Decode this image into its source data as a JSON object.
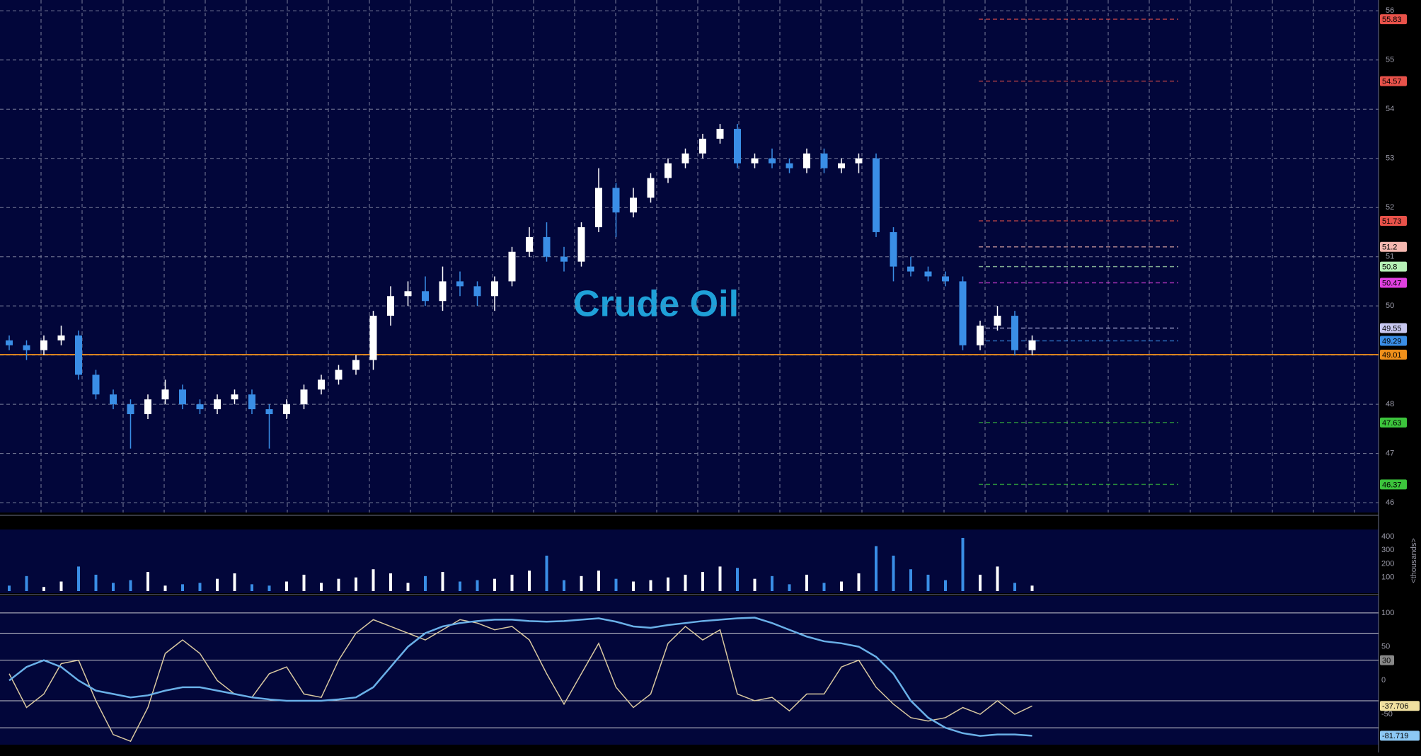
{
  "chart_data": [
    {
      "type": "candlestick",
      "title": "Crude Oil",
      "open": [
        49.3,
        49.2,
        49.1,
        49.3,
        49.4,
        48.6,
        48.2,
        48.0,
        47.8,
        48.1,
        48.3,
        48.0,
        47.9,
        48.1,
        48.2,
        47.9,
        47.8,
        48.0,
        48.3,
        48.5,
        48.7,
        48.9,
        49.8,
        50.2,
        50.3,
        50.1,
        50.5,
        50.4,
        50.2,
        50.5,
        51.1,
        51.4,
        51.0,
        50.9,
        51.6,
        52.4,
        51.9,
        52.2,
        52.6,
        52.9,
        53.1,
        53.4,
        53.6,
        52.9,
        53.0,
        52.9,
        52.8,
        53.1,
        52.8,
        52.9,
        53.0,
        51.5,
        50.8,
        50.7,
        50.6,
        50.5,
        49.2,
        49.6,
        49.8,
        49.1
      ],
      "high": [
        49.4,
        49.3,
        49.4,
        49.6,
        49.5,
        48.7,
        48.3,
        48.1,
        48.2,
        48.5,
        48.4,
        48.1,
        48.2,
        48.3,
        48.3,
        48.0,
        48.1,
        48.4,
        48.6,
        48.8,
        49.0,
        49.9,
        50.4,
        50.5,
        50.6,
        50.8,
        50.7,
        50.5,
        50.6,
        51.2,
        51.6,
        51.7,
        51.2,
        51.7,
        52.8,
        52.5,
        52.4,
        52.7,
        53.0,
        53.2,
        53.5,
        53.7,
        53.7,
        53.1,
        53.2,
        53.0,
        53.2,
        53.2,
        53.0,
        53.1,
        53.1,
        51.6,
        51.0,
        50.8,
        50.7,
        50.6,
        49.7,
        50.0,
        49.9,
        49.4
      ],
      "low": [
        49.1,
        48.9,
        49.0,
        49.2,
        48.5,
        48.1,
        47.9,
        47.1,
        47.7,
        48.0,
        47.9,
        47.8,
        47.8,
        48.0,
        47.8,
        47.1,
        47.7,
        47.9,
        48.2,
        48.4,
        48.6,
        48.7,
        49.6,
        50.0,
        50.0,
        49.9,
        50.2,
        50.0,
        49.9,
        50.4,
        51.0,
        50.9,
        50.7,
        50.8,
        51.5,
        51.4,
        51.8,
        52.1,
        52.5,
        52.8,
        53.0,
        53.3,
        52.8,
        52.8,
        52.8,
        52.7,
        52.7,
        52.7,
        52.7,
        52.7,
        51.4,
        50.5,
        50.6,
        50.5,
        50.4,
        49.1,
        49.1,
        49.5,
        49.0,
        49.0
      ],
      "close": [
        49.2,
        49.1,
        49.3,
        49.4,
        48.6,
        48.2,
        48.0,
        47.8,
        48.1,
        48.3,
        48.0,
        47.9,
        48.1,
        48.2,
        47.9,
        47.8,
        48.0,
        48.3,
        48.5,
        48.7,
        48.9,
        49.8,
        50.2,
        50.3,
        50.1,
        50.5,
        50.4,
        50.2,
        50.5,
        51.1,
        51.4,
        51.0,
        50.9,
        51.6,
        52.4,
        51.9,
        52.2,
        52.6,
        52.9,
        53.1,
        53.4,
        53.6,
        52.9,
        53.0,
        52.9,
        52.8,
        53.1,
        52.8,
        52.9,
        53.0,
        51.5,
        50.8,
        50.7,
        50.6,
        50.5,
        49.2,
        49.6,
        49.8,
        49.1,
        49.3
      ],
      "colors": {
        "up": "#ffffff",
        "down": "#3a8ee6"
      },
      "ylim": [
        45.8,
        56.22
      ],
      "yticks": [
        46,
        47,
        48,
        49,
        50,
        51,
        52,
        53,
        54,
        55,
        56
      ],
      "grid": true,
      "levels": [
        {
          "value": 55.83,
          "color": "#e8524a"
        },
        {
          "value": 54.57,
          "color": "#e8524a"
        },
        {
          "value": 51.73,
          "color": "#e8524a"
        },
        {
          "value": 51.2,
          "color": "#f4b8b0"
        },
        {
          "value": 50.8,
          "color": "#b6f0b6"
        },
        {
          "value": 50.47,
          "color": "#e040e0"
        },
        {
          "value": 49.55,
          "color": "#c8c8f0"
        },
        {
          "value": 49.29,
          "color": "#3a8ee6"
        },
        {
          "value": 49.01,
          "color": "#f0901a",
          "span": "full"
        },
        {
          "value": 47.63,
          "color": "#3cc43c"
        },
        {
          "value": 46.37,
          "color": "#3cc43c"
        }
      ]
    },
    {
      "type": "bar",
      "y_label": "<thousands>",
      "values": [
        40,
        110,
        30,
        70,
        180,
        120,
        60,
        80,
        140,
        40,
        50,
        60,
        90,
        130,
        50,
        40,
        70,
        120,
        60,
        90,
        100,
        160,
        130,
        60,
        110,
        140,
        70,
        80,
        90,
        120,
        150,
        260,
        80,
        110,
        150,
        90,
        70,
        80,
        100,
        120,
        140,
        180,
        170,
        90,
        110,
        50,
        120,
        60,
        70,
        130,
        330,
        260,
        160,
        120,
        80,
        390,
        120,
        180,
        60,
        40
      ],
      "ylim": [
        0,
        452
      ],
      "yticks": [
        100,
        200,
        300,
        400
      ]
    },
    {
      "type": "line",
      "series": [
        {
          "color": "#d8c8a0",
          "values": [
            10,
            -40,
            -20,
            25,
            30,
            -30,
            -80,
            -90,
            -40,
            40,
            60,
            40,
            0,
            -20,
            -25,
            10,
            20,
            -20,
            -25,
            30,
            70,
            90,
            80,
            70,
            60,
            75,
            90,
            85,
            75,
            80,
            60,
            10,
            -35,
            10,
            55,
            -10,
            -40,
            -20,
            55,
            80,
            60,
            75,
            -20,
            -30,
            -25,
            -45,
            -20,
            -20,
            20,
            30,
            -10,
            -35,
            -55,
            -60,
            -55,
            -40,
            -50,
            -30,
            -50,
            -37.706
          ],
          "tag_color": "#f0e0a0"
        },
        {
          "color": "#6ab0e8",
          "values": [
            0,
            20,
            30,
            20,
            0,
            -15,
            -20,
            -25,
            -22,
            -15,
            -10,
            -10,
            -15,
            -20,
            -25,
            -28,
            -30,
            -30,
            -30,
            -28,
            -25,
            -10,
            20,
            50,
            70,
            80,
            85,
            88,
            90,
            90,
            88,
            87,
            88,
            90,
            92,
            87,
            80,
            78,
            82,
            85,
            88,
            90,
            92,
            93,
            85,
            75,
            65,
            58,
            55,
            50,
            35,
            10,
            -30,
            -55,
            -70,
            -78,
            -82,
            -80,
            -80,
            -81.719
          ],
          "tag_color": "#8cc8f4"
        }
      ],
      "ylim": [
        -95,
        125
      ],
      "yticks": [
        100,
        50,
        0,
        -50
      ],
      "levels": [
        100,
        70,
        -30,
        -70
      ],
      "level_tags": [
        30
      ]
    }
  ]
}
